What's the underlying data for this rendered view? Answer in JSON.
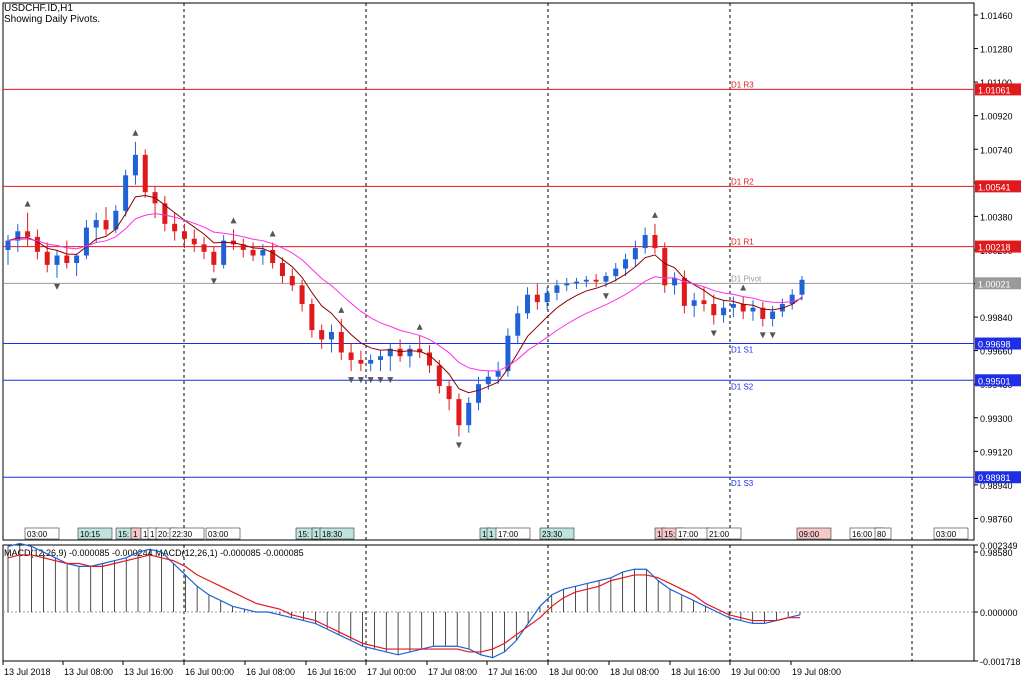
{
  "header": {
    "symbol": "USDCHF.ID,H1",
    "indicator": "Showing Daily Pivots."
  },
  "macd_header": "MACD(12,26,9) -0.000085 -0.000244 MACD(12,26,1) -0.000085 -0.000085",
  "colors": {
    "bull": "#1e62d6",
    "bear": "#e0191d",
    "macd_hist": "#000000",
    "macd_signal": "#e0191d",
    "macd_line": "#1e62d6",
    "ma_fast": "#8b0000",
    "ma_slow": "#ff2ee6",
    "resistance": "#e0191d",
    "pivot": "#9a9a9a",
    "support": "#1e2ee6"
  },
  "chart_data": [
    {
      "type": "candlestick",
      "ylim": [
        0.9858,
        1.0146
      ],
      "price_ticks": [
        "1.01460",
        "1.01280",
        "1.01100",
        "1.00920",
        "1.00740",
        "1.00560",
        "1.00380",
        "1.00200",
        "1.00020",
        "0.99840",
        "0.99660",
        "0.99480",
        "0.99300",
        "0.99120",
        "0.98940",
        "0.98760",
        "0.98580"
      ],
      "pivots": [
        {
          "name": "D1 R3",
          "value": 1.01061,
          "label": "1.01061",
          "kind": "resistance"
        },
        {
          "name": "D1 R2",
          "value": 1.00541,
          "label": "1.00541",
          "kind": "resistance"
        },
        {
          "name": "D1 R1",
          "value": 1.00218,
          "label": "1.00218",
          "kind": "resistance"
        },
        {
          "name": "D1 Pivot",
          "value": 1.00021,
          "label": "1.00021",
          "kind": "pivot"
        },
        {
          "name": "D1 S1",
          "value": 0.99698,
          "label": "0.99698",
          "kind": "support"
        },
        {
          "name": "D1 S2",
          "value": 0.99501,
          "label": "0.99501",
          "kind": "support"
        },
        {
          "name": "D1 S3",
          "value": 0.98981,
          "label": "0.98981",
          "kind": "support"
        }
      ],
      "candles": [
        [
          1.002,
          1.0028,
          1.0012,
          1.0025
        ],
        [
          1.0025,
          1.0034,
          1.0019,
          1.003
        ],
        [
          1.003,
          1.004,
          1.0022,
          1.0027
        ],
        [
          1.0027,
          1.0031,
          1.0015,
          1.0019
        ],
        [
          1.0019,
          1.0024,
          1.0008,
          1.0012
        ],
        [
          1.0012,
          1.002,
          1.0005,
          1.0017
        ],
        [
          1.0017,
          1.0025,
          1.001,
          1.0013
        ],
        [
          1.0013,
          1.0018,
          1.0006,
          1.0017
        ],
        [
          1.0017,
          1.0036,
          1.0015,
          1.0032
        ],
        [
          1.0032,
          1.004,
          1.0024,
          1.0036
        ],
        [
          1.0036,
          1.0043,
          1.0028,
          1.0031
        ],
        [
          1.0031,
          1.0044,
          1.0029,
          1.0041
        ],
        [
          1.0041,
          1.0063,
          1.0038,
          1.006
        ],
        [
          1.006,
          1.0078,
          1.0055,
          1.0071
        ],
        [
          1.0071,
          1.0074,
          1.0048,
          1.0051
        ],
        [
          1.0051,
          1.0054,
          1.0037,
          1.0045
        ],
        [
          1.0045,
          1.0049,
          1.003,
          1.0034
        ],
        [
          1.0034,
          1.004,
          1.0025,
          1.003
        ],
        [
          1.003,
          1.0034,
          1.0021,
          1.0026
        ],
        [
          1.0026,
          1.0031,
          1.0019,
          1.0023
        ],
        [
          1.0023,
          1.0027,
          1.0015,
          1.0019
        ],
        [
          1.0019,
          1.0022,
          1.0008,
          1.0012
        ],
        [
          1.0012,
          1.0028,
          1.001,
          1.0025
        ],
        [
          1.0025,
          1.0031,
          1.002,
          1.0023
        ],
        [
          1.0023,
          1.0026,
          1.0016,
          1.002
        ],
        [
          1.002,
          1.0024,
          1.0014,
          1.0017
        ],
        [
          1.0017,
          1.0023,
          1.0012,
          1.002
        ],
        [
          1.002,
          1.0024,
          1.001,
          1.0013
        ],
        [
          1.0013,
          1.0016,
          1.0002,
          1.0006
        ],
        [
          1.0006,
          1.001,
          0.9998,
          1.0001
        ],
        [
          1.0001,
          1.0004,
          0.9987,
          0.9991
        ],
        [
          0.9991,
          0.9994,
          0.9973,
          0.9977
        ],
        [
          0.9977,
          0.998,
          0.9967,
          0.9972
        ],
        [
          0.9972,
          0.998,
          0.9965,
          0.9976
        ],
        [
          0.9976,
          0.9983,
          0.9961,
          0.9965
        ],
        [
          0.9965,
          0.997,
          0.9955,
          0.9961
        ],
        [
          0.9961,
          0.9966,
          0.9955,
          0.9959
        ],
        [
          0.9959,
          0.9964,
          0.9955,
          0.9961
        ],
        [
          0.9961,
          0.9966,
          0.9955,
          0.9963
        ],
        [
          0.9963,
          0.997,
          0.9955,
          0.9967
        ],
        [
          0.9967,
          0.9972,
          0.996,
          0.9963
        ],
        [
          0.9963,
          0.9969,
          0.9957,
          0.9967
        ],
        [
          0.9967,
          0.9974,
          0.9962,
          0.9965
        ],
        [
          0.9965,
          0.9969,
          0.9954,
          0.9958
        ],
        [
          0.9958,
          0.9961,
          0.9943,
          0.9947
        ],
        [
          0.9947,
          0.995,
          0.9934,
          0.994
        ],
        [
          0.994,
          0.9943,
          0.992,
          0.9926
        ],
        [
          0.9926,
          0.9941,
          0.9922,
          0.9938
        ],
        [
          0.9938,
          0.9952,
          0.9934,
          0.9948
        ],
        [
          0.9948,
          0.9955,
          0.9945,
          0.9952
        ],
        [
          0.9952,
          0.996,
          0.9948,
          0.9955
        ],
        [
          0.9955,
          0.9978,
          0.9952,
          0.9974
        ],
        [
          0.9974,
          0.999,
          0.997,
          0.9986
        ],
        [
          0.9986,
          1.0,
          0.9983,
          0.9996
        ],
        [
          0.9996,
          1.0002,
          0.9988,
          0.9992
        ],
        [
          0.9992,
          1.0,
          0.9988,
          0.9997
        ],
        [
          0.9997,
          1.0004,
          0.9993,
          1.0001
        ],
        [
          1.0001,
          1.0005,
          0.9998,
          1.0002
        ],
        [
          1.0002,
          1.0005,
          0.9999,
          1.0003
        ],
        [
          1.0003,
          1.0006,
          1.0,
          1.0004
        ],
        [
          1.0004,
          1.0007,
          1.0,
          1.0003
        ],
        [
          1.0003,
          1.0008,
          1.0,
          1.0006
        ],
        [
          1.0006,
          1.0013,
          1.0003,
          1.001
        ],
        [
          1.001,
          1.0018,
          1.0006,
          1.0015
        ],
        [
          1.0015,
          1.0025,
          1.0011,
          1.0021
        ],
        [
          1.0021,
          1.0032,
          1.0018,
          1.0028
        ],
        [
          1.0028,
          1.0034,
          1.0018,
          1.0021
        ],
        [
          1.0021,
          1.0024,
          0.9997,
          1.0001
        ],
        [
          1.0001,
          1.0008,
          0.9996,
          1.0005
        ],
        [
          1.0005,
          1.0009,
          0.9986,
          0.999
        ],
        [
          0.999,
          0.9997,
          0.9984,
          0.9993
        ],
        [
          0.9993,
          1.0,
          0.9987,
          0.9991
        ],
        [
          0.9991,
          0.9996,
          0.998,
          0.9985
        ],
        [
          0.9985,
          0.9993,
          0.9981,
          0.9989
        ],
        [
          0.9989,
          0.9995,
          0.9984,
          0.9991
        ],
        [
          0.9991,
          0.9995,
          0.9983,
          0.9987
        ],
        [
          0.9987,
          0.9993,
          0.9982,
          0.9989
        ],
        [
          0.9989,
          0.9992,
          0.9979,
          0.9983
        ],
        [
          0.9983,
          0.999,
          0.9979,
          0.9987
        ],
        [
          0.9987,
          0.9994,
          0.9984,
          0.9991
        ],
        [
          0.9991,
          0.9999,
          0.9988,
          0.9996
        ],
        [
          0.9996,
          1.0006,
          0.9993,
          1.0004
        ]
      ],
      "x_ticks": [
        "13 Jul 2018",
        "13 Jul 08:00",
        "13 Jul 16:00",
        "16 Jul 00:00",
        "16 Jul 08:00",
        "16 Jul 16:00",
        "17 Jul 00:00",
        "17 Jul 08:00",
        "17 Jul 16:00",
        "18 Jul 00:00",
        "18 Jul 08:00",
        "18 Jul 16:00",
        "19 Jul 00:00",
        "19 Jul 08:00"
      ],
      "time_labels": [
        {
          "text": "03:00",
          "style": "plain"
        },
        {
          "text": "10:15",
          "style": "teal"
        },
        {
          "text": "15:",
          "style": "teal"
        },
        {
          "text": "1",
          "style": "red"
        },
        {
          "text": "1",
          "style": "plain"
        },
        {
          "text": "1",
          "style": "plain"
        },
        {
          "text": "20:",
          "style": "plain"
        },
        {
          "text": "22:30",
          "style": "plain"
        },
        {
          "text": "03:00",
          "style": "plain"
        },
        {
          "text": "15:",
          "style": "teal"
        },
        {
          "text": "1",
          "style": "teal"
        },
        {
          "text": "18:30",
          "style": "teal"
        },
        {
          "text": "1",
          "style": "teal"
        },
        {
          "text": "1",
          "style": "teal"
        },
        {
          "text": "17:00",
          "style": "plain"
        },
        {
          "text": "23:30",
          "style": "teal"
        },
        {
          "text": "1",
          "style": "red"
        },
        {
          "text": "15:",
          "style": "red"
        },
        {
          "text": "17:00",
          "style": "plain"
        },
        {
          "text": "21:00",
          "style": "plain"
        },
        {
          "text": "09:00",
          "style": "red"
        },
        {
          "text": "16:00",
          "style": "plain"
        },
        {
          "text": "80",
          "style": "plain"
        },
        {
          "text": "03:00",
          "style": "plain"
        }
      ]
    },
    {
      "type": "line",
      "title": "MACD(12,26,9)",
      "ylim": [
        -0.001718,
        0.002349
      ],
      "y_ticks": [
        "0.002349",
        "0.000000",
        "-0.001718"
      ],
      "histogram": [
        0.0023,
        0.0024,
        0.0023,
        0.0021,
        0.0019,
        0.0017,
        0.0016,
        0.0016,
        0.0017,
        0.0018,
        0.0019,
        0.0021,
        0.0022,
        0.0021,
        0.0017,
        0.0013,
        0.0009,
        0.0006,
        0.0004,
        0.0002,
        0.0001,
        0.0,
        0.0,
        -0.0001,
        -0.0002,
        -0.0003,
        -0.0004,
        -0.0006,
        -0.0008,
        -0.001,
        -0.0012,
        -0.0013,
        -0.0014,
        -0.0015,
        -0.0014,
        -0.0013,
        -0.0012,
        -0.0012,
        -0.0012,
        -0.0013,
        -0.0015,
        -0.0016,
        -0.0014,
        -0.001,
        -0.0004,
        0.0002,
        0.0006,
        0.0008,
        0.0009,
        0.001,
        0.0011,
        0.0012,
        0.0014,
        0.0015,
        0.0015,
        0.0011,
        0.0008,
        0.0006,
        0.0004,
        0.0002,
        0.0,
        -0.0002,
        -0.0003,
        -0.0004,
        -0.0004,
        -0.0003,
        -0.0002,
        -0.0001
      ],
      "signal": [
        0.0019,
        0.002,
        0.002,
        0.0019,
        0.0018,
        0.0017,
        0.0017,
        0.0016,
        0.0016,
        0.0017,
        0.0018,
        0.0019,
        0.002,
        0.0019,
        0.0018,
        0.0016,
        0.0013,
        0.0011,
        0.0009,
        0.0007,
        0.0005,
        0.0003,
        0.0002,
        0.0001,
        -0.0001,
        -0.0002,
        -0.0003,
        -0.0005,
        -0.0007,
        -0.0009,
        -0.0011,
        -0.0012,
        -0.0013,
        -0.0013,
        -0.0013,
        -0.0013,
        -0.0013,
        -0.0013,
        -0.0013,
        -0.0014,
        -0.0014,
        -0.0013,
        -0.0011,
        -0.0008,
        -0.0005,
        -0.0002,
        0.0002,
        0.0005,
        0.0007,
        0.0008,
        0.0009,
        0.0011,
        0.0012,
        0.0013,
        0.0013,
        0.0012,
        0.001,
        0.0008,
        0.0006,
        0.0003,
        0.0001,
        -0.0001,
        -0.0002,
        -0.0003,
        -0.0003,
        -0.0003,
        -0.0002,
        -0.0002
      ]
    }
  ]
}
